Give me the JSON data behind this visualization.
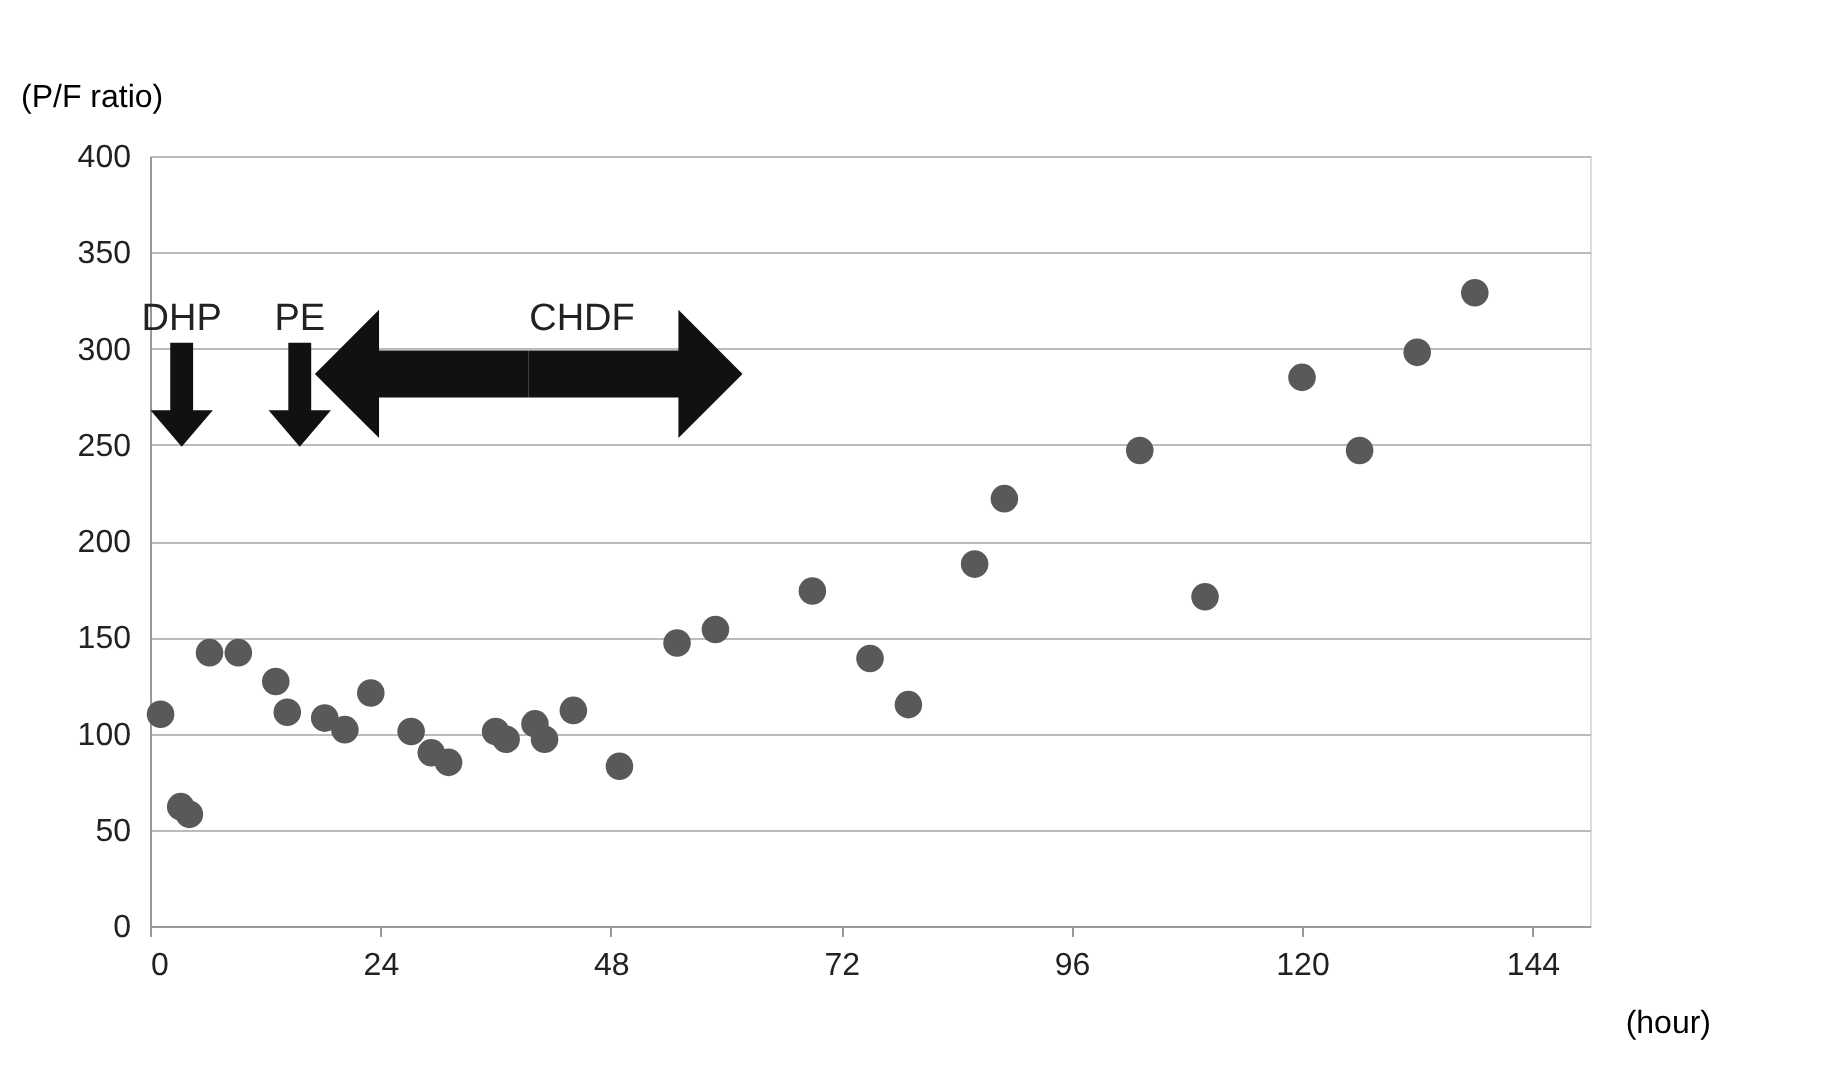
{
  "chart_data": {
    "type": "scatter",
    "xlabel": "(hour)",
    "ylabel": "(P/F ratio)",
    "x": [
      1.1,
      3.2,
      4.1,
      6.2,
      9.2,
      13.1,
      14.3,
      18.2,
      20.3,
      23,
      27.2,
      29.3,
      31.1,
      36,
      37.1,
      40.1,
      41.1,
      44.1,
      48.9,
      54.9,
      58.9,
      69,
      75,
      79,
      85.9,
      89,
      103.1,
      109.9,
      120,
      126,
      132,
      138
    ],
    "series": [
      {
        "color": "#595959",
        "values": [
          110,
          62,
          58,
          142,
          142,
          127,
          111,
          108,
          102,
          121,
          101,
          90,
          85,
          101,
          97,
          105,
          97,
          112,
          83,
          147,
          154,
          174,
          139,
          115,
          188,
          222,
          247,
          171,
          285,
          247,
          298,
          329
        ]
      }
    ],
    "xlim": [
      0,
      150
    ],
    "xticks": [
      0,
      24,
      48,
      72,
      96,
      120,
      144
    ],
    "ylim": [
      0,
      400
    ],
    "yticks": [
      0,
      50,
      100,
      150,
      200,
      250,
      300,
      350,
      400
    ],
    "grid": "y",
    "marker": "circle",
    "annotations": [
      "DHP",
      "PE",
      "CHDF"
    ]
  }
}
